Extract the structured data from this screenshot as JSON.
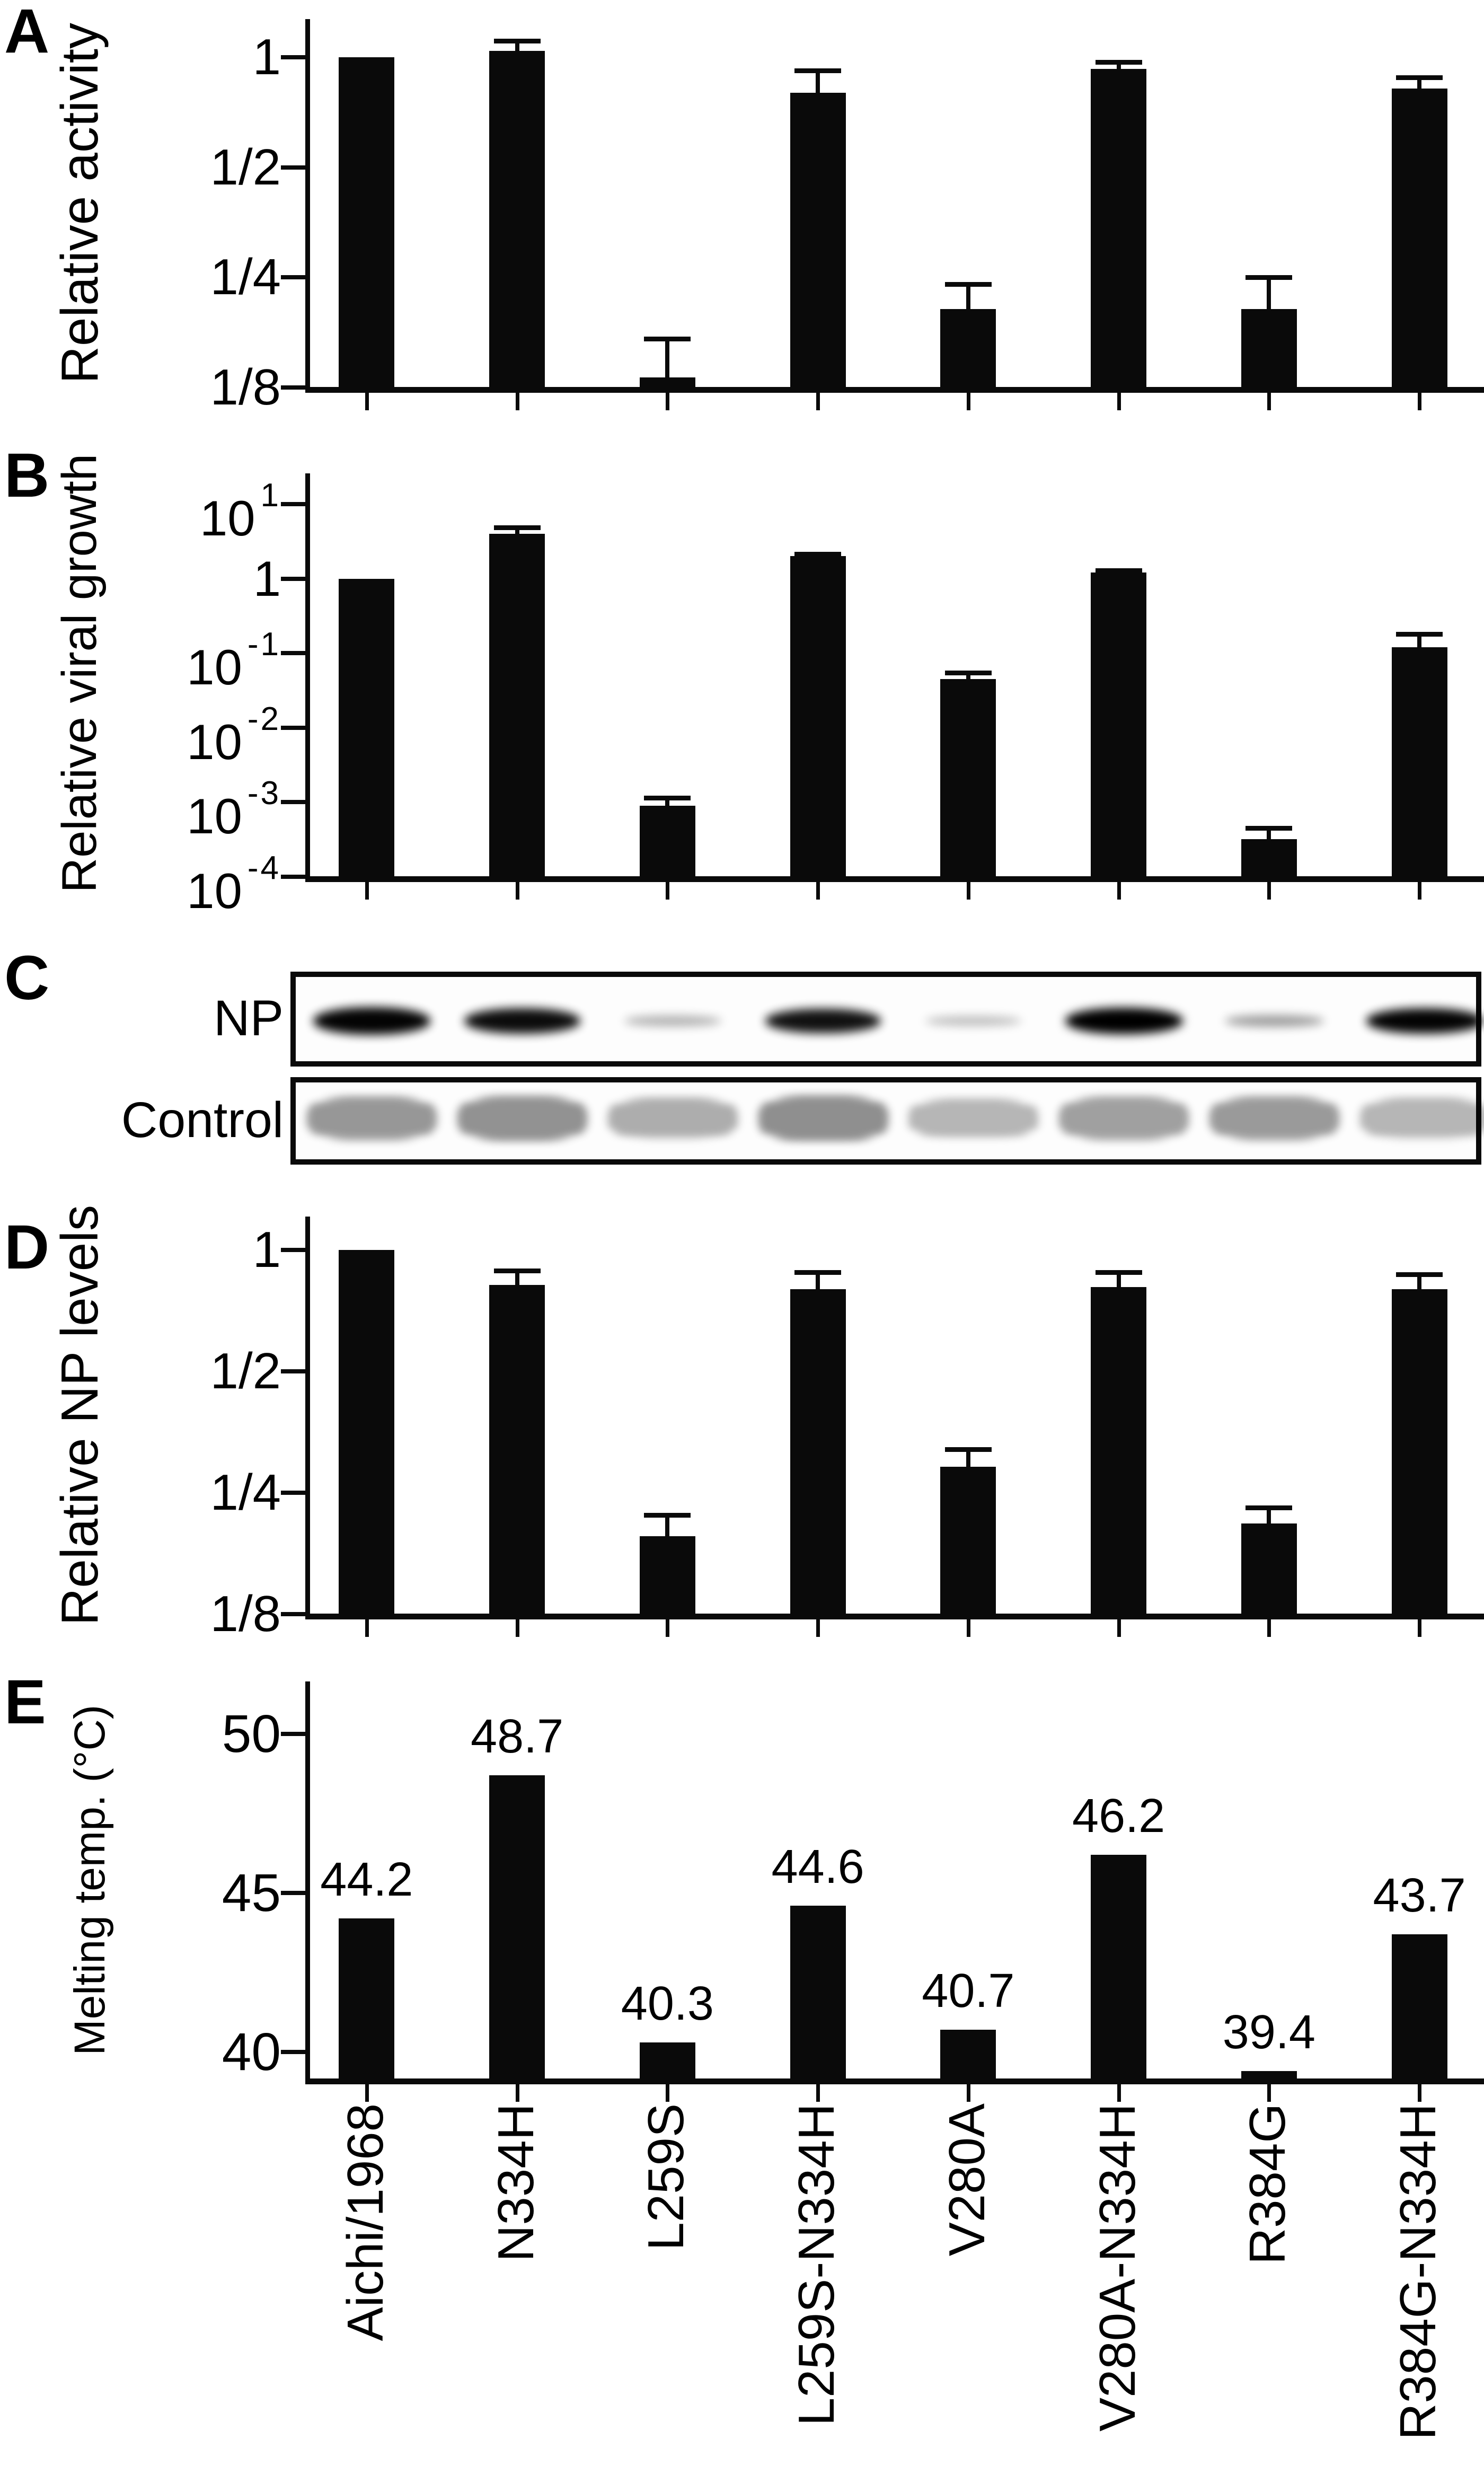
{
  "colors": {
    "bars": "#000000",
    "axis": "#0a0a0a",
    "background": "#ffffff"
  },
  "panels": {
    "a": {
      "letter": "A"
    },
    "b": {
      "letter": "B"
    },
    "c": {
      "letter": "C"
    },
    "d": {
      "letter": "D"
    },
    "e": {
      "letter": "E"
    }
  },
  "categories": [
    "Aichi/1968",
    "N334H",
    "L259S",
    "L259S-N334H",
    "V280A",
    "V280A-N334H",
    "R384G",
    "R384G-N334H"
  ],
  "chart_data": [
    {
      "id": "A",
      "type": "bar",
      "title": "",
      "ylabel": "Relative activity",
      "xlabel": "",
      "yscale": "log2",
      "grid": false,
      "legend": null,
      "categories": [
        "Aichi/1968",
        "N334H",
        "L259S",
        "L259S-N334H",
        "V280A",
        "V280A-N334H",
        "R384G",
        "R384G-N334H"
      ],
      "values": [
        1.0,
        1.04,
        0.133,
        0.8,
        0.205,
        0.93,
        0.205,
        0.82
      ],
      "errors_upper": [
        null,
        1.11,
        0.17,
        0.92,
        0.24,
        0.97,
        0.25,
        0.88
      ],
      "yticks": [
        {
          "label": "1",
          "exp": "",
          "value": 1
        },
        {
          "label": "1/2",
          "exp": "",
          "value": 0.5
        },
        {
          "label": "1/4",
          "exp": "",
          "value": 0.25
        },
        {
          "label": "1/8",
          "exp": "",
          "value": 0.125
        }
      ],
      "ylim": [
        0.125,
        1.2
      ]
    },
    {
      "id": "B",
      "type": "bar",
      "title": "",
      "ylabel": "Relative viral growth",
      "xlabel": "",
      "yscale": "log10",
      "grid": false,
      "legend": null,
      "categories": [
        "Aichi/1968",
        "N334H",
        "L259S",
        "L259S-N334H",
        "V280A",
        "V280A-N334H",
        "R384G",
        "R384G-N334H"
      ],
      "values": [
        1.0,
        4.0,
        0.0009,
        2.0,
        0.045,
        1.2,
        0.00032,
        0.12
      ],
      "errors_upper": [
        null,
        4.9,
        0.00115,
        2.15,
        0.055,
        1.3,
        0.00045,
        0.18
      ],
      "yticks": [
        {
          "label": "10",
          "exp": "1",
          "value": 10
        },
        {
          "label": "1",
          "exp": "",
          "value": 1
        },
        {
          "label": "10",
          "exp": "-1",
          "value": 0.1
        },
        {
          "label": "10",
          "exp": "-2",
          "value": 0.01
        },
        {
          "label": "10",
          "exp": "-3",
          "value": 0.001
        },
        {
          "label": "10",
          "exp": "-4",
          "value": 0.0001
        }
      ],
      "ylim": [
        0.0001,
        12
      ]
    },
    {
      "id": "C",
      "type": "blot",
      "title": "",
      "rows": [
        {
          "label": "NP",
          "lane_intensities": [
            0.98,
            0.95,
            0.3,
            0.93,
            0.26,
            1.0,
            0.38,
            0.98
          ],
          "lane_thickness": [
            52,
            48,
            20,
            46,
            18,
            50,
            22,
            48
          ]
        },
        {
          "label": "Control",
          "lane_intensities": [
            0.72,
            0.76,
            0.56,
            0.78,
            0.5,
            0.66,
            0.7,
            0.5
          ],
          "lane_thickness": [
            80,
            82,
            76,
            84,
            72,
            80,
            80,
            76
          ]
        }
      ]
    },
    {
      "id": "D",
      "type": "bar",
      "title": "",
      "ylabel": "Relative NP levels",
      "xlabel": "",
      "yscale": "log2",
      "grid": false,
      "legend": null,
      "categories": [
        "Aichi/1968",
        "N334H",
        "L259S",
        "L259S-N334H",
        "V280A",
        "V280A-N334H",
        "R384G",
        "R384G-N334H"
      ],
      "values": [
        1.0,
        0.82,
        0.195,
        0.8,
        0.29,
        0.81,
        0.21,
        0.8
      ],
      "errors_upper": [
        null,
        0.89,
        0.22,
        0.88,
        0.32,
        0.88,
        0.23,
        0.87
      ],
      "yticks": [
        {
          "label": "1",
          "exp": "",
          "value": 1
        },
        {
          "label": "1/2",
          "exp": "",
          "value": 0.5
        },
        {
          "label": "1/4",
          "exp": "",
          "value": 0.25
        },
        {
          "label": "1/8",
          "exp": "",
          "value": 0.125
        }
      ],
      "ylim": [
        0.125,
        1.15
      ]
    },
    {
      "id": "E",
      "type": "bar",
      "title": "",
      "ylabel": "Melting temp. (°C)",
      "xlabel": "",
      "yscale": "linear",
      "grid": false,
      "legend": null,
      "categories": [
        "Aichi/1968",
        "N334H",
        "L259S",
        "L259S-N334H",
        "V280A",
        "V280A-N334H",
        "R384G",
        "R384G-N334H"
      ],
      "values": [
        44.2,
        48.7,
        40.3,
        44.6,
        40.7,
        46.2,
        39.4,
        43.7
      ],
      "value_labels": [
        "44.2",
        "48.7",
        "40.3",
        "44.6",
        "40.7",
        "46.2",
        "39.4",
        "43.7"
      ],
      "errors_upper": [
        null,
        null,
        null,
        null,
        null,
        null,
        null,
        null
      ],
      "yticks": [
        {
          "label": "50",
          "exp": "",
          "value": 50
        },
        {
          "label": "45",
          "exp": "",
          "value": 45
        },
        {
          "label": "40",
          "exp": "",
          "value": 40
        }
      ],
      "ylim": [
        39.15,
        51.5
      ]
    }
  ]
}
